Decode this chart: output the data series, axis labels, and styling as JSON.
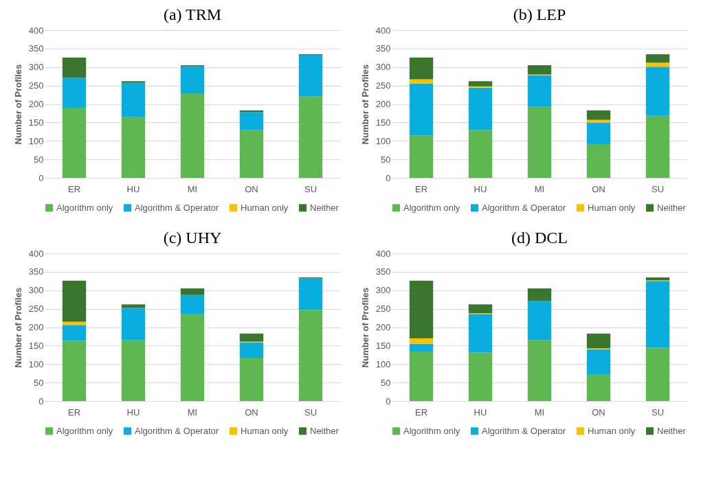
{
  "chart_data": [
    {
      "type": "bar",
      "stacked": true,
      "title": "(a) TRM",
      "ylabel": "Number of Profiles",
      "categories": [
        "ER",
        "HU",
        "MI",
        "ON",
        "SU"
      ],
      "ylim": [
        0,
        400
      ],
      "yticks": [
        0,
        50,
        100,
        150,
        200,
        250,
        300,
        350,
        400
      ],
      "grid": "y",
      "legend": "bottom",
      "series": [
        {
          "name": "Algorithm only",
          "color": "#5eb750",
          "values": [
            190,
            164,
            229,
            129,
            221
          ]
        },
        {
          "name": "Algorithm & Operator",
          "color": "#0aaede",
          "values": [
            81,
            93,
            73,
            49,
            112
          ]
        },
        {
          "name": "Human only",
          "color": "#ffc000",
          "values": [
            0,
            0,
            0,
            0,
            0
          ]
        },
        {
          "name": "Neither",
          "color": "#3a7630",
          "values": [
            55,
            5,
            3,
            5,
            2
          ]
        }
      ]
    },
    {
      "type": "bar",
      "stacked": true,
      "title": "(b) LEP",
      "ylabel": "Number of Profiles",
      "categories": [
        "ER",
        "HU",
        "MI",
        "ON",
        "SU"
      ],
      "ylim": [
        0,
        400
      ],
      "yticks": [
        0,
        50,
        100,
        150,
        200,
        250,
        300,
        350,
        400
      ],
      "grid": "y",
      "legend": "bottom",
      "series": [
        {
          "name": "Algorithm only",
          "color": "#5eb750",
          "values": [
            115,
            130,
            192,
            91,
            168
          ]
        },
        {
          "name": "Algorithm & Operator",
          "color": "#0aaede",
          "values": [
            141,
            114,
            86,
            59,
            133
          ]
        },
        {
          "name": "Human only",
          "color": "#ffc000",
          "values": [
            11,
            4,
            2,
            7,
            11
          ]
        },
        {
          "name": "Neither",
          "color": "#3a7630",
          "values": [
            59,
            14,
            25,
            26,
            23
          ]
        }
      ]
    },
    {
      "type": "bar",
      "stacked": true,
      "title": "(c) UHY",
      "ylabel": "Number of Profiles",
      "categories": [
        "ER",
        "HU",
        "MI",
        "ON",
        "SU"
      ],
      "ylim": [
        0,
        400
      ],
      "yticks": [
        0,
        50,
        100,
        150,
        200,
        250,
        300,
        350,
        400
      ],
      "grid": "y",
      "legend": "bottom",
      "series": [
        {
          "name": "Algorithm only",
          "color": "#5eb750",
          "values": [
            163,
            164,
            235,
            117,
            247
          ]
        },
        {
          "name": "Algorithm & Operator",
          "color": "#0aaede",
          "values": [
            43,
            88,
            52,
            42,
            85
          ]
        },
        {
          "name": "Human only",
          "color": "#ffc000",
          "values": [
            9,
            0,
            0,
            2,
            0
          ]
        },
        {
          "name": "Neither",
          "color": "#3a7630",
          "values": [
            111,
            10,
            18,
            22,
            3
          ]
        }
      ]
    },
    {
      "type": "bar",
      "stacked": true,
      "title": "(d) DCL",
      "ylabel": "Number of Profiles",
      "categories": [
        "ER",
        "HU",
        "MI",
        "ON",
        "SU"
      ],
      "ylim": [
        0,
        400
      ],
      "yticks": [
        0,
        50,
        100,
        150,
        200,
        250,
        300,
        350,
        400
      ],
      "grid": "y",
      "legend": "bottom",
      "series": [
        {
          "name": "Algorithm only",
          "color": "#5eb750",
          "values": [
            134,
            131,
            165,
            71,
            144
          ]
        },
        {
          "name": "Algorithm & Operator",
          "color": "#0aaede",
          "values": [
            21,
            105,
            106,
            69,
            181
          ]
        },
        {
          "name": "Human only",
          "color": "#ffc000",
          "values": [
            15,
            2,
            0,
            3,
            2
          ]
        },
        {
          "name": "Neither",
          "color": "#3a7630",
          "values": [
            156,
            24,
            34,
            40,
            8
          ]
        }
      ]
    }
  ]
}
